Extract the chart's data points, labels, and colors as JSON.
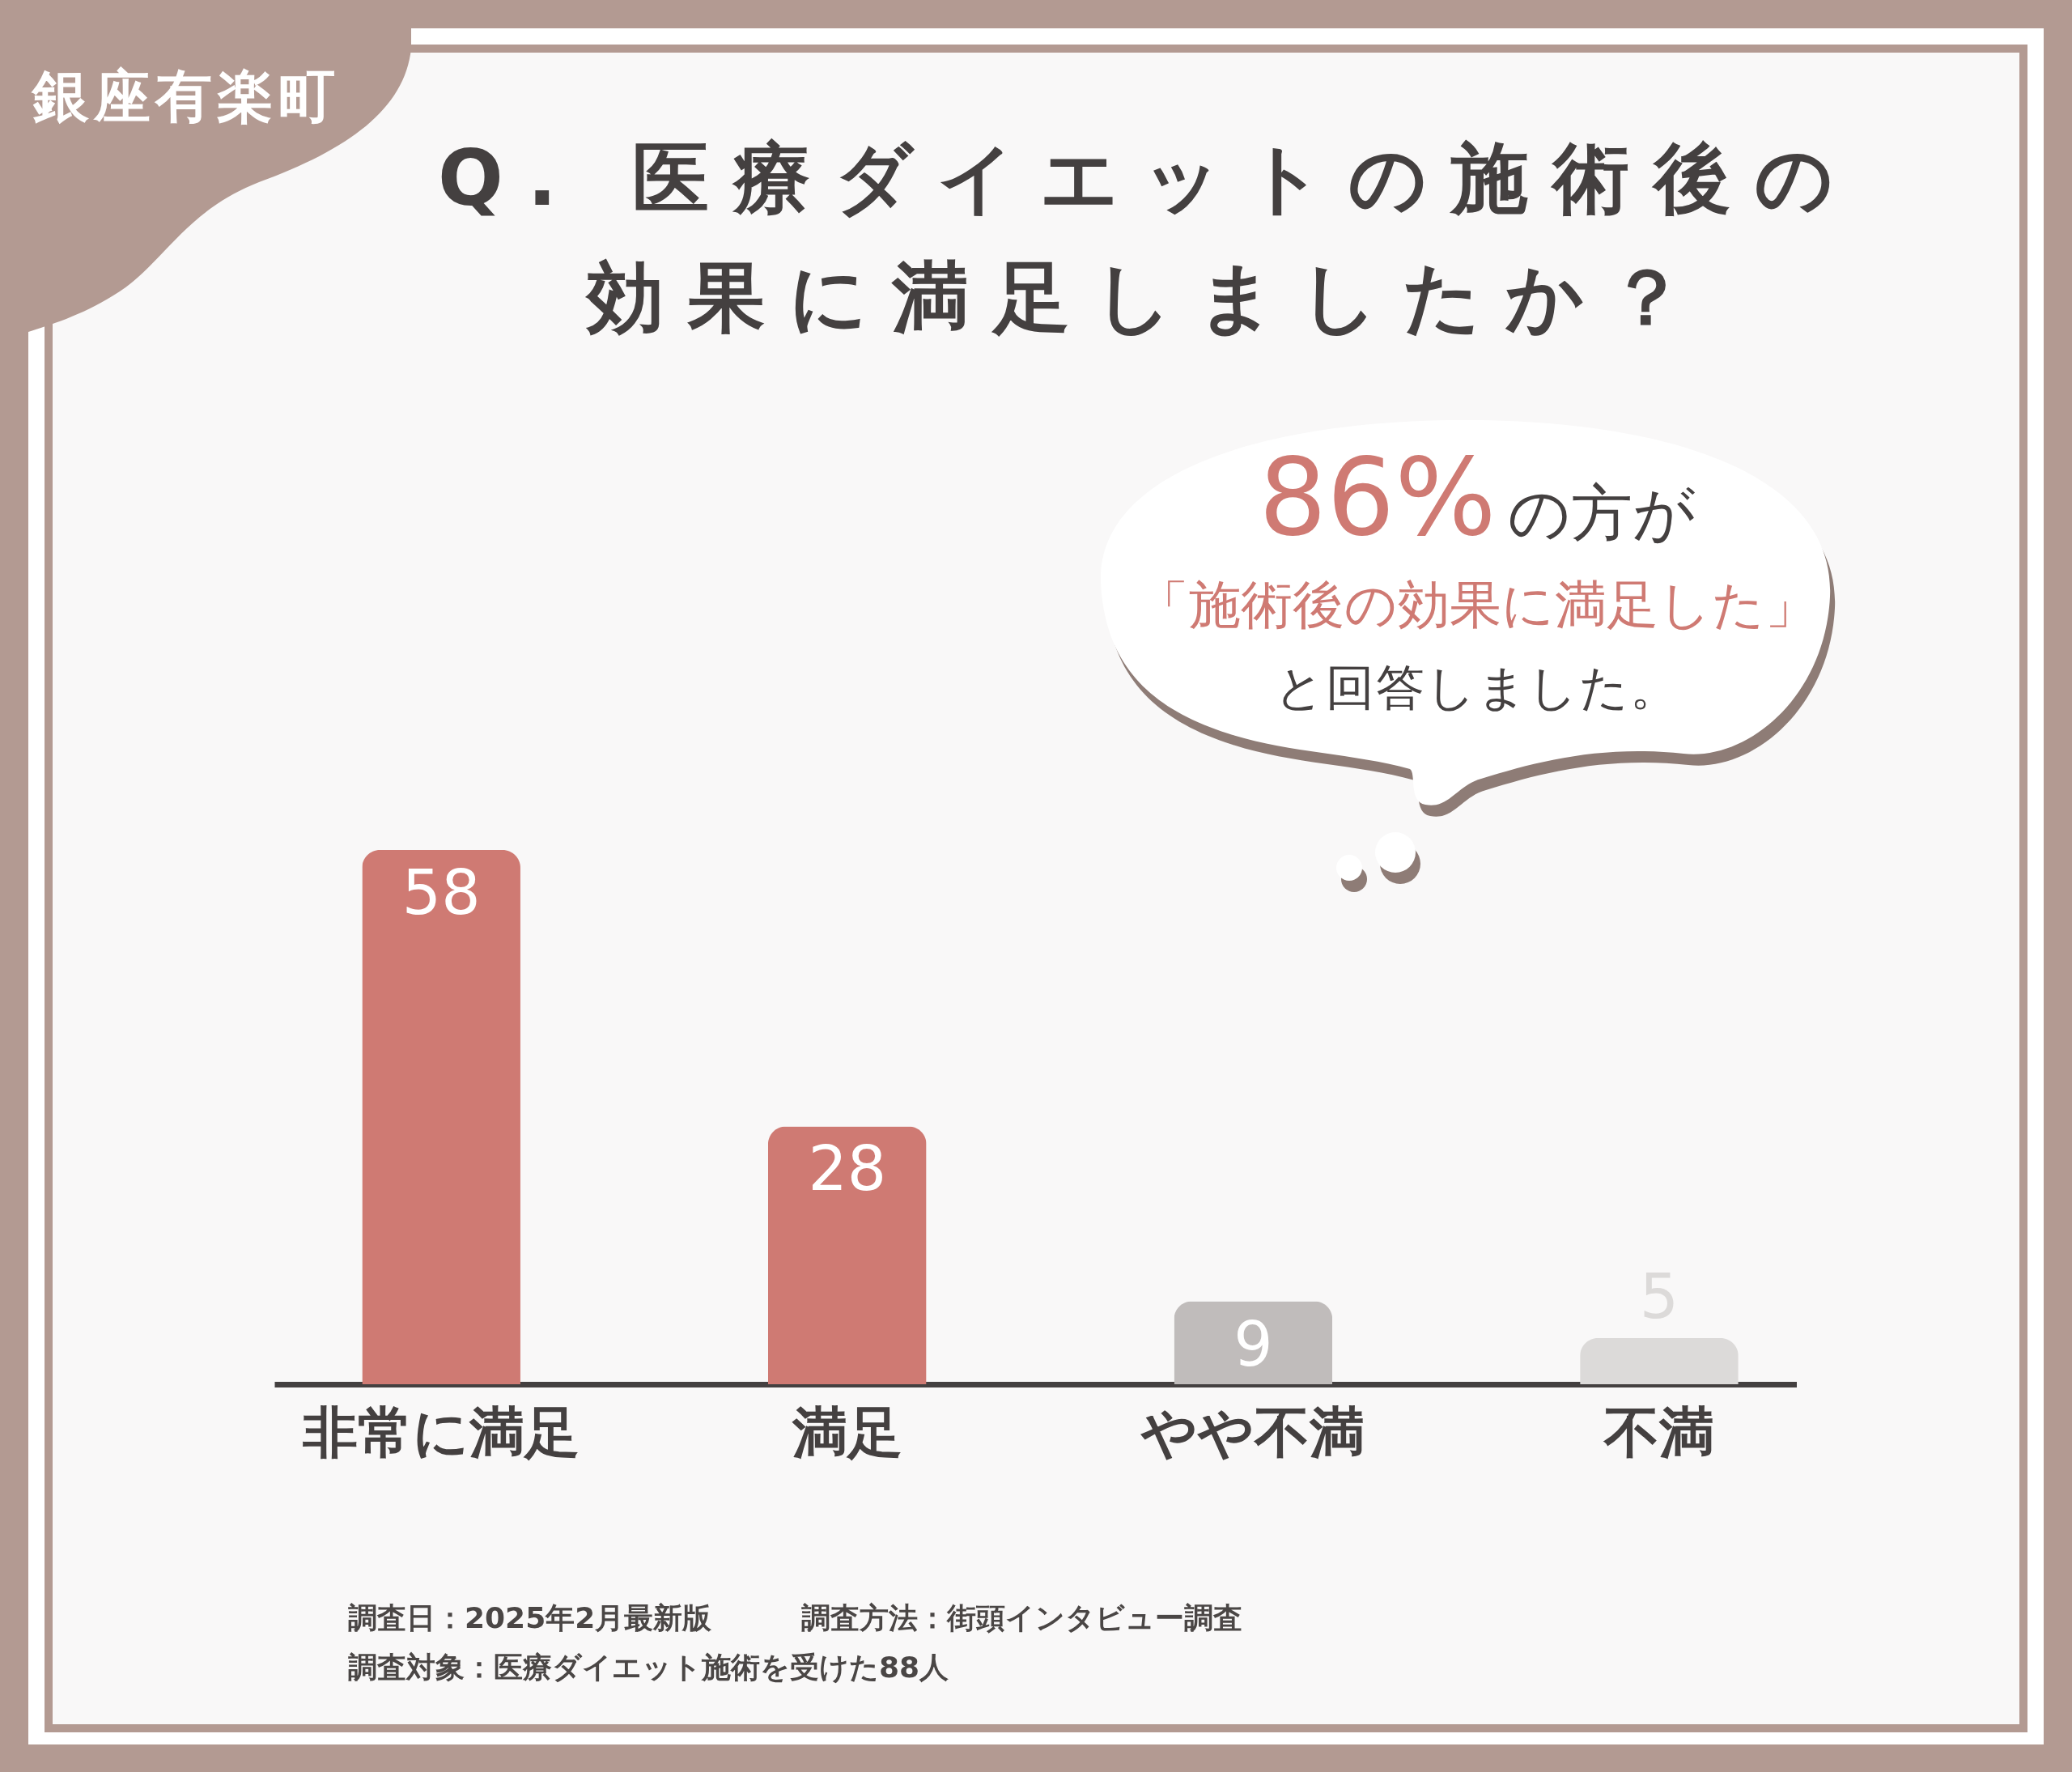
{
  "chart_data": {
    "type": "bar",
    "title": "Q. 医療ダイエットの施術後の効果に満足しましたか？",
    "categories": [
      "非常に満足",
      "満足",
      "やや不満",
      "不満"
    ],
    "values": [
      58,
      28,
      9,
      5
    ],
    "colors": [
      "#cf7a73",
      "#cf7a73",
      "#c0bcbb",
      "#dcdad9"
    ],
    "data_labels": true,
    "annotations": [
      "銀座有楽町",
      "86%",
      "の方が",
      "「施術後の効果に満足した」",
      "と回答しました。",
      "調査日：2025年2月最新版",
      "調査方法：街頭インタビュー調査",
      "調査対象：医療ダイエット施術を受けた88人"
    ]
  }
}
